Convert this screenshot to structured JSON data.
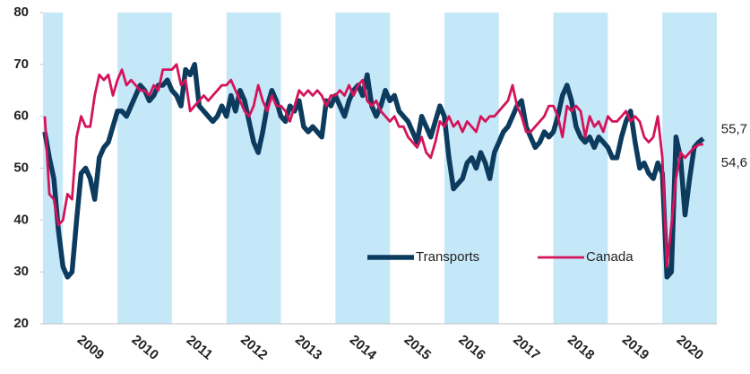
{
  "chart_data": {
    "type": "line",
    "categories": [
      null,
      null,
      null,
      null,
      null,
      null,
      null,
      null,
      null,
      null,
      "2009",
      null,
      null,
      null,
      null,
      null,
      null,
      null,
      null,
      null,
      null,
      null,
      "2010",
      null,
      null,
      null,
      null,
      null,
      null,
      null,
      null,
      null,
      null,
      null,
      "2011",
      null,
      null,
      null,
      null,
      null,
      null,
      null,
      null,
      null,
      null,
      null,
      "2012",
      null,
      null,
      null,
      null,
      null,
      null,
      null,
      null,
      null,
      null,
      null,
      "2013",
      null,
      null,
      null,
      null,
      null,
      null,
      null,
      null,
      null,
      null,
      null,
      "2014",
      null,
      null,
      null,
      null,
      null,
      null,
      null,
      null,
      null,
      null,
      null,
      "2015",
      null,
      null,
      null,
      null,
      null,
      null,
      null,
      null,
      null,
      null,
      null,
      "2016",
      null,
      null,
      null,
      null,
      null,
      null,
      null,
      null,
      null,
      null,
      null,
      "2017",
      null,
      null,
      null,
      null,
      null,
      null,
      null,
      null,
      null,
      null,
      null,
      "2018",
      null,
      null,
      null,
      null,
      null,
      null,
      null,
      null,
      null,
      null,
      null,
      "2019",
      null,
      null,
      null,
      null,
      null,
      null,
      null,
      null,
      null,
      null,
      null,
      "2020",
      null,
      null,
      null
    ],
    "series": [
      {
        "name": "Transports",
        "color": "#0d3b5e",
        "values": [
          57,
          52,
          48,
          38,
          31,
          29,
          30,
          40,
          49,
          50,
          48,
          44,
          52,
          54,
          55,
          58,
          61,
          61,
          60,
          62,
          64,
          66,
          65,
          63,
          64,
          66,
          66,
          67,
          65,
          64,
          62,
          69,
          68,
          70,
          62,
          61,
          60,
          59,
          60,
          62,
          60,
          64,
          61,
          65,
          63,
          59,
          55,
          53,
          57,
          62,
          65,
          63,
          60,
          59,
          62,
          61,
          63,
          58,
          57,
          58,
          57,
          56,
          63,
          62,
          64,
          62,
          60,
          63,
          65,
          66,
          64,
          68,
          62,
          60,
          62,
          65,
          63,
          64,
          61,
          60,
          59,
          57,
          55,
          60,
          58,
          56,
          59,
          62,
          60,
          52,
          46,
          47,
          48,
          51,
          52,
          50,
          53,
          51,
          48,
          53,
          55,
          57,
          58,
          60,
          62,
          63,
          58,
          56,
          54,
          55,
          57,
          56,
          57,
          60,
          64,
          66,
          63,
          58,
          56,
          55,
          56,
          54,
          56,
          55,
          54,
          52,
          52,
          56,
          59,
          61,
          55,
          50,
          51,
          49,
          48,
          51,
          49,
          29,
          30,
          56,
          52,
          41,
          48,
          54,
          55,
          55.7
        ],
        "value_labels": [
          null,
          null,
          null,
          null,
          null,
          null,
          null,
          null,
          null,
          null,
          null,
          null,
          null,
          null,
          null,
          null,
          null,
          null,
          null,
          null,
          null,
          null,
          null,
          null,
          null,
          null,
          null,
          null,
          null,
          null,
          null,
          null,
          null,
          null,
          null,
          null,
          null,
          null,
          null,
          null,
          null,
          null,
          null,
          null,
          null,
          null,
          null,
          null,
          null,
          null,
          null,
          null,
          null,
          null,
          null,
          null,
          null,
          null,
          null,
          null,
          null,
          null,
          null,
          null,
          null,
          null,
          null,
          null,
          null,
          null,
          null,
          null,
          null,
          null,
          null,
          null,
          null,
          null,
          null,
          null,
          null,
          null,
          null,
          null,
          null,
          null,
          null,
          null,
          null,
          null,
          null,
          null,
          null,
          null,
          null,
          null,
          null,
          null,
          null,
          null,
          null,
          null,
          null,
          null,
          null,
          null,
          null,
          null,
          null,
          null,
          null,
          null,
          null,
          null,
          null,
          null,
          null,
          null,
          null,
          null,
          null,
          null,
          null,
          null,
          null,
          null,
          null,
          null,
          null,
          null,
          null,
          null,
          null,
          null,
          null,
          null,
          null,
          null,
          null,
          null,
          null,
          null,
          null,
          null,
          null,
          "55,7"
        ]
      },
      {
        "name": "Canada",
        "color": "#d4145a",
        "values": [
          60,
          45,
          44,
          39,
          40,
          45,
          44,
          56,
          60,
          58,
          58,
          64,
          68,
          67,
          68,
          64,
          67,
          69,
          66,
          67,
          66,
          65,
          65,
          64,
          66,
          65,
          69,
          69,
          69,
          70,
          66,
          67,
          61,
          62,
          63,
          64,
          63,
          64,
          65,
          66,
          66,
          67,
          65,
          63,
          61,
          60,
          62,
          66,
          63,
          61,
          64,
          62,
          62,
          61,
          59,
          62,
          65,
          64,
          65,
          64,
          65,
          64,
          62,
          64,
          64,
          65,
          64,
          66,
          64,
          66,
          67,
          63,
          62,
          63,
          61,
          60,
          59,
          60,
          58,
          58,
          56,
          55,
          54,
          56,
          53,
          52,
          55,
          59,
          58,
          60,
          58,
          59,
          57,
          59,
          58,
          57,
          60,
          59,
          60,
          60,
          61,
          62,
          63,
          66,
          62,
          60,
          57,
          57,
          58,
          59,
          60,
          62,
          62,
          60,
          56,
          62,
          61,
          62,
          61,
          56,
          60,
          58,
          59,
          57,
          60,
          59,
          59,
          60,
          61,
          59,
          60,
          59,
          56,
          55,
          56,
          60,
          52,
          31,
          39,
          48,
          53,
          52,
          53,
          54,
          54.5,
          54.6
        ],
        "value_labels": [
          null,
          null,
          null,
          null,
          null,
          null,
          null,
          null,
          null,
          null,
          null,
          null,
          null,
          null,
          null,
          null,
          null,
          null,
          null,
          null,
          null,
          null,
          null,
          null,
          null,
          null,
          null,
          null,
          null,
          null,
          null,
          null,
          null,
          null,
          null,
          null,
          null,
          null,
          null,
          null,
          null,
          null,
          null,
          null,
          null,
          null,
          null,
          null,
          null,
          null,
          null,
          null,
          null,
          null,
          null,
          null,
          null,
          null,
          null,
          null,
          null,
          null,
          null,
          null,
          null,
          null,
          null,
          null,
          null,
          null,
          null,
          null,
          null,
          null,
          null,
          null,
          null,
          null,
          null,
          null,
          null,
          null,
          null,
          null,
          null,
          null,
          null,
          null,
          null,
          null,
          null,
          null,
          null,
          null,
          null,
          null,
          null,
          null,
          null,
          null,
          null,
          null,
          null,
          null,
          null,
          null,
          null,
          null,
          null,
          null,
          null,
          null,
          null,
          null,
          null,
          null,
          null,
          null,
          null,
          null,
          null,
          null,
          null,
          null,
          null,
          null,
          null,
          null,
          null,
          null,
          null,
          null,
          null,
          null,
          null,
          null,
          null,
          null,
          null,
          null,
          null,
          null,
          null,
          null,
          null,
          "54,6"
        ]
      }
    ],
    "ylim": [
      20,
      80
    ],
    "yticks": [
      20,
      30,
      40,
      50,
      60,
      70,
      80
    ],
    "grid": false,
    "band_color": "#c5e8f8",
    "legend": "lower right"
  }
}
